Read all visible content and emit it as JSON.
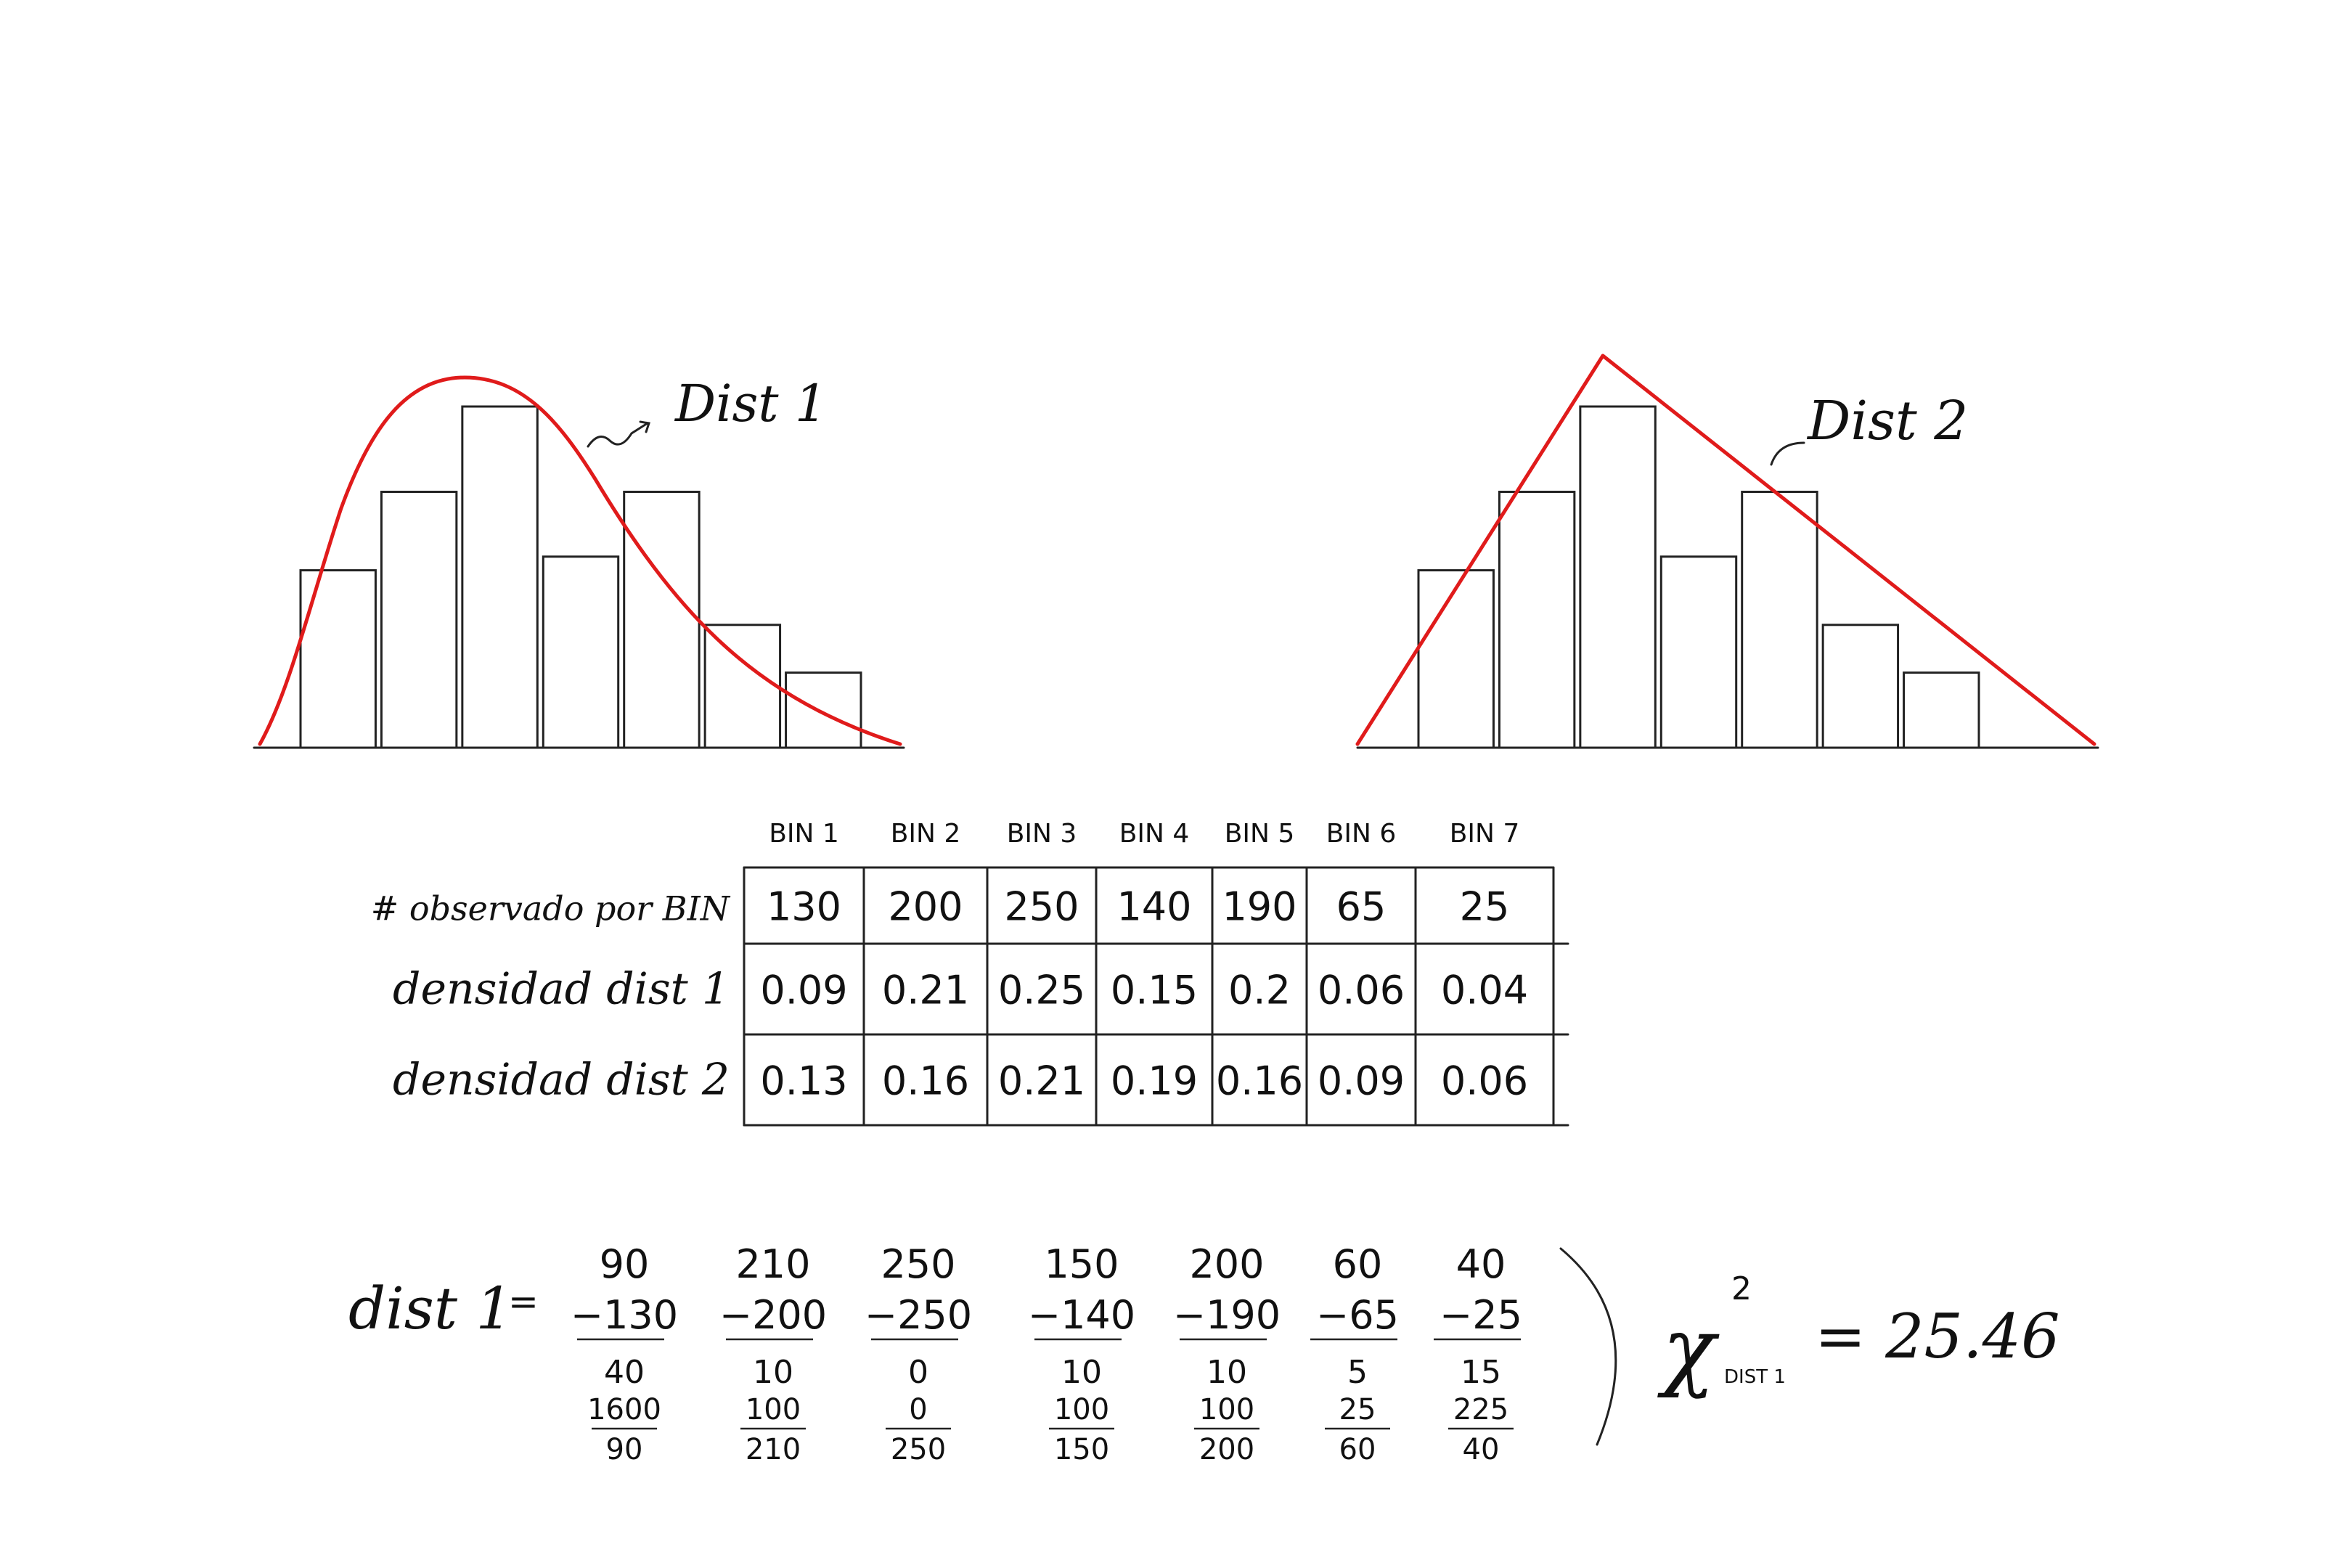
{
  "hist1": {
    "label": "Dist 1",
    "bar_heights": [
      0.52,
      0.75,
      1.0,
      0.56,
      0.75,
      0.36,
      0.22
    ]
  },
  "hist2": {
    "label": "Dist 2",
    "bar_heights": [
      0.52,
      0.75,
      1.0,
      0.56,
      0.75,
      0.36,
      0.22
    ]
  },
  "table": {
    "bin_headers": [
      "BIN 1",
      "BIN 2",
      "BIN 3",
      "BIN 4",
      "BIN 5",
      "BIN 6",
      "BIN 7"
    ],
    "rows": [
      {
        "label": "# observado por BIN",
        "values": [
          "130",
          "200",
          "250",
          "140",
          "190",
          "65",
          "25"
        ]
      },
      {
        "label": "densidad dist 1",
        "values": [
          "0.09",
          "0.21",
          "0.25",
          "0.15",
          "0.2",
          "0.06",
          "0.04"
        ]
      },
      {
        "label": "densidad dist 2",
        "values": [
          "0.13",
          "0.16",
          "0.21",
          "0.19",
          "0.16",
          "0.09",
          "0.06"
        ]
      }
    ]
  },
  "calc": {
    "label": "dist 1",
    "equals": "=",
    "columns": [
      {
        "expected": "90",
        "observed": "−130",
        "diff": "40",
        "num": "1600",
        "den": "90"
      },
      {
        "expected": "210",
        "observed": "−200",
        "diff": "10",
        "num": "100",
        "den": "210"
      },
      {
        "expected": "250",
        "observed": "−250",
        "diff": "0",
        "num": "0",
        "den": "250"
      },
      {
        "expected": "150",
        "observed": "−140",
        "diff": "10",
        "num": "100",
        "den": "150"
      },
      {
        "expected": "200",
        "observed": "−190",
        "diff": "10",
        "num": "100",
        "den": "200"
      },
      {
        "expected": "60",
        "observed": "−65",
        "diff": "5",
        "num": "25",
        "den": "60"
      },
      {
        "expected": "40",
        "observed": "−25",
        "diff": "15",
        "num": "225",
        "den": "40"
      }
    ],
    "chi_symbol": "χ",
    "chi_superscript": "2",
    "chi_subscript": "DIST 1",
    "result": "= 25.46"
  }
}
